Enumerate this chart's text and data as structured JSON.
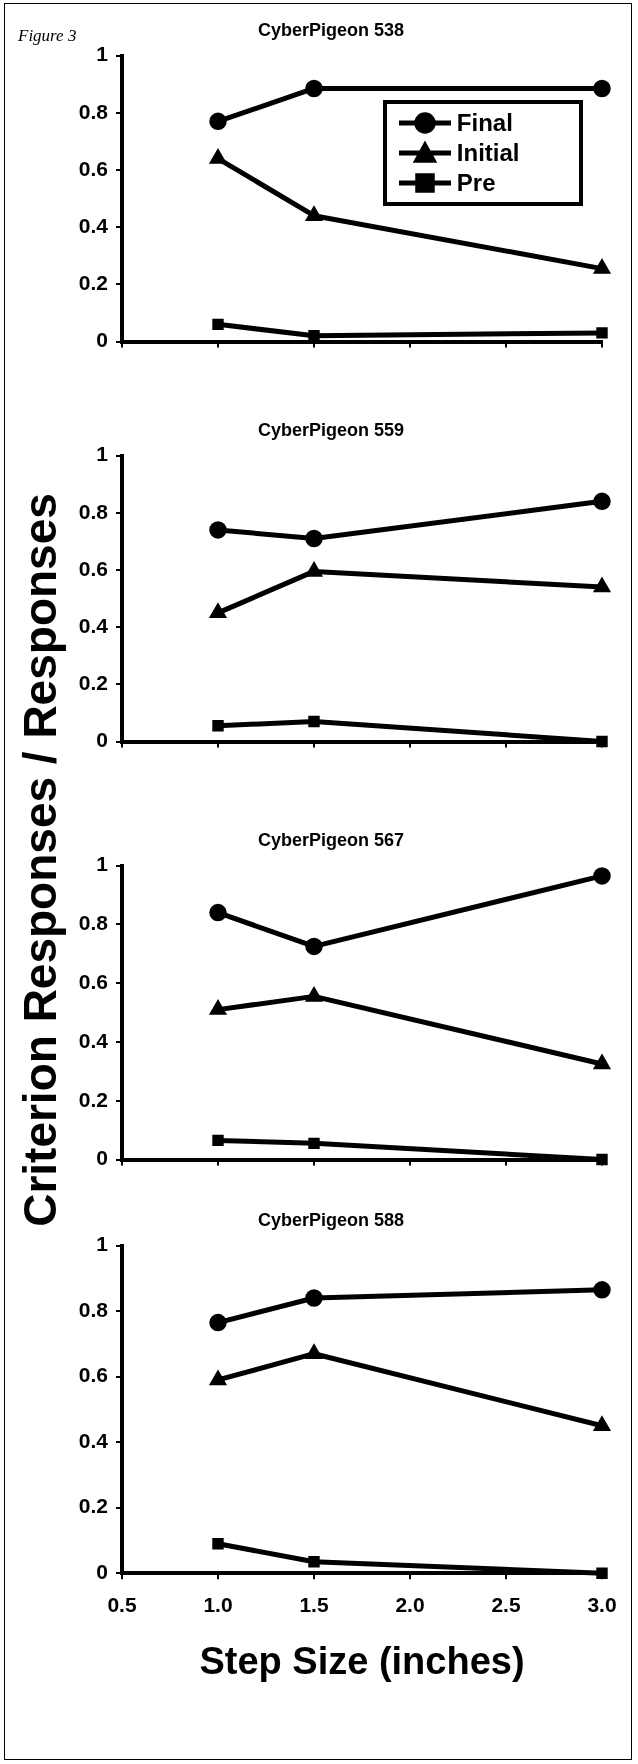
{
  "chart_data": [
    {
      "type": "line",
      "title": "CyberPigeon 538",
      "annotations": [
        "Figure 3"
      ],
      "x": [
        1,
        1.5,
        3
      ],
      "xlim": [
        0.5,
        3
      ],
      "xticks": [
        {
          "value": 0.5,
          "label": null
        },
        {
          "value": 1,
          "label": null
        },
        {
          "value": 1.5,
          "label": null
        },
        {
          "value": 2,
          "label": null
        },
        {
          "value": 2.5,
          "label": null
        },
        {
          "value": 3,
          "label": null
        }
      ],
      "ylim": [
        0,
        1
      ],
      "yticks": [
        0,
        0.2,
        0.4,
        0.6,
        0.8,
        1
      ],
      "tick_labels": "y",
      "grid": false,
      "legend": "top right",
      "series": [
        {
          "name": "Final",
          "color": "#000000",
          "marker": "circle",
          "values": [
            0.77,
            0.885,
            0.885
          ]
        },
        {
          "name": "Initial",
          "color": "#000000",
          "marker": "triangle",
          "values": [
            0.64,
            0.44,
            0.255
          ]
        },
        {
          "name": "Pre",
          "color": "#000000",
          "marker": "square",
          "values": [
            0.06,
            0.02,
            0.03
          ]
        }
      ]
    },
    {
      "type": "line",
      "title": "CyberPigeon 559",
      "ylabel": "Criterion Responses / Responses",
      "x": [
        1,
        1.5,
        3
      ],
      "xlim": [
        0.5,
        3
      ],
      "xticks": [
        {
          "value": 0.5,
          "label": null
        },
        {
          "value": 1,
          "label": null
        },
        {
          "value": 1.5,
          "label": null
        },
        {
          "value": 2,
          "label": null
        },
        {
          "value": 2.5,
          "label": null
        },
        {
          "value": 3,
          "label": null
        }
      ],
      "ylim": [
        0,
        1
      ],
      "yticks": [
        0,
        0.2,
        0.4,
        0.6,
        0.8,
        1
      ],
      "tick_labels": "y",
      "grid": false,
      "series": [
        {
          "color": "#000000",
          "marker": "circle",
          "values": [
            0.74,
            0.71,
            0.84
          ]
        },
        {
          "color": "#000000",
          "marker": "triangle",
          "values": [
            0.45,
            0.595,
            0.54
          ]
        },
        {
          "color": "#000000",
          "marker": "square",
          "values": [
            0.055,
            0.07,
            0
          ]
        }
      ]
    },
    {
      "type": "line",
      "title": "CyberPigeon 567",
      "x": [
        1,
        1.5,
        3
      ],
      "xlim": [
        0.5,
        3
      ],
      "xticks": [
        {
          "value": 0.5,
          "label": null
        },
        {
          "value": 1,
          "label": null
        },
        {
          "value": 1.5,
          "label": null
        },
        {
          "value": 2,
          "label": null
        },
        {
          "value": 2.5,
          "label": null
        },
        {
          "value": 3,
          "label": null
        }
      ],
      "ylim": [
        0,
        1
      ],
      "yticks": [
        0,
        0.2,
        0.4,
        0.6,
        0.8,
        1
      ],
      "tick_labels": "y",
      "grid": false,
      "series": [
        {
          "color": "#000000",
          "marker": "circle",
          "values": [
            0.84,
            0.725,
            0.965
          ]
        },
        {
          "color": "#000000",
          "marker": "triangle",
          "values": [
            0.51,
            0.555,
            0.325
          ]
        },
        {
          "color": "#000000",
          "marker": "square",
          "values": [
            0.065,
            0.055,
            0
          ]
        }
      ]
    },
    {
      "type": "line",
      "title": "CyberPigeon 588",
      "xlabel": "Step Size (inches)",
      "x": [
        1,
        1.5,
        3
      ],
      "xlim": [
        0.5,
        3
      ],
      "xticks": [
        {
          "value": 0.5,
          "label": "0.5"
        },
        {
          "value": 1,
          "label": "1.0"
        },
        {
          "value": 1.5,
          "label": "1.5"
        },
        {
          "value": 2,
          "label": "2.0"
        },
        {
          "value": 2.5,
          "label": "2.5"
        },
        {
          "value": 3,
          "label": "3.0"
        }
      ],
      "ylim": [
        0,
        1
      ],
      "yticks": [
        0,
        0.2,
        0.4,
        0.6,
        0.8,
        1
      ],
      "grid": false,
      "series": [
        {
          "color": "#000000",
          "marker": "circle",
          "values": [
            0.765,
            0.84,
            0.865
          ]
        },
        {
          "color": "#000000",
          "marker": "triangle",
          "values": [
            0.59,
            0.67,
            0.45
          ]
        },
        {
          "color": "#000000",
          "marker": "square",
          "values": [
            0.09,
            0.035,
            0
          ]
        }
      ]
    }
  ]
}
